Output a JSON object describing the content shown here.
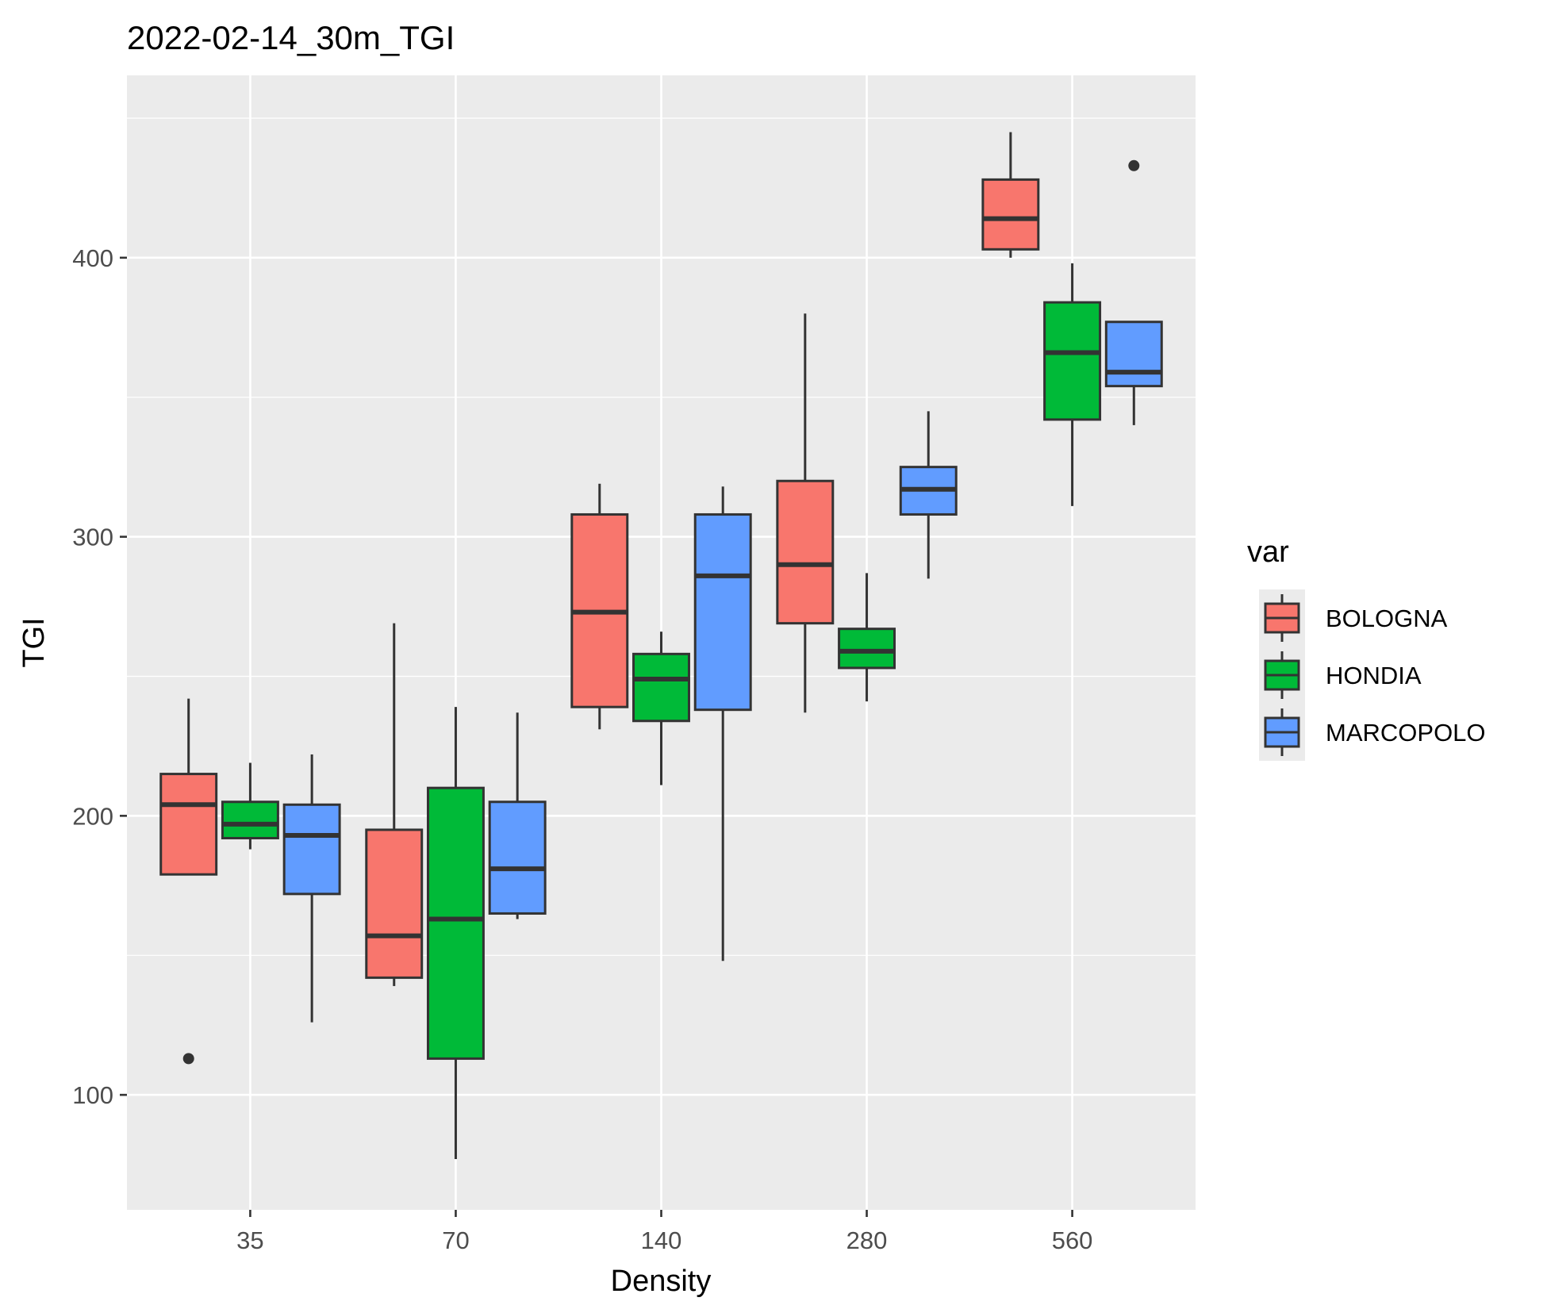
{
  "chart_data": {
    "type": "boxplot",
    "title": "2022-02-14_30m_TGI",
    "xlabel": "Density",
    "ylabel": "TGI",
    "categories": [
      "35",
      "70",
      "140",
      "280",
      "560"
    ],
    "y_ticks": [
      100,
      200,
      300,
      400
    ],
    "y_tick_labels": [
      "100",
      "200",
      "300",
      "400"
    ],
    "ylim": [
      60,
      460
    ],
    "grid": true,
    "legend": {
      "title": "var",
      "placement": "right"
    },
    "colors": {
      "BOLOGNA": "#F8766D",
      "HONDIA": "#00BA38",
      "MARCOPOLO": "#619CFF",
      "panel": "#EBEBEB",
      "grid": "#FFFFFF",
      "box_line": "#333333"
    },
    "series": [
      {
        "name": "BOLOGNA",
        "boxes": [
          {
            "min": 179,
            "q1": 179,
            "median": 204,
            "q3": 215,
            "max": 242,
            "outliers": [
              113
            ]
          },
          {
            "min": 139,
            "q1": 142,
            "median": 157,
            "q3": 195,
            "max": 269,
            "outliers": []
          },
          {
            "min": 231,
            "q1": 239,
            "median": 273,
            "q3": 308,
            "max": 319,
            "outliers": []
          },
          {
            "min": 237,
            "q1": 269,
            "median": 290,
            "q3": 320,
            "max": 380,
            "outliers": []
          },
          {
            "min": 400,
            "q1": 403,
            "median": 414,
            "q3": 428,
            "max": 445,
            "outliers": []
          }
        ]
      },
      {
        "name": "HONDIA",
        "boxes": [
          {
            "min": 188,
            "q1": 192,
            "median": 197,
            "q3": 205,
            "max": 219,
            "outliers": []
          },
          {
            "min": 77,
            "q1": 113,
            "median": 163,
            "q3": 210,
            "max": 239,
            "outliers": []
          },
          {
            "min": 211,
            "q1": 234,
            "median": 249,
            "q3": 258,
            "max": 266,
            "outliers": []
          },
          {
            "min": 241,
            "q1": 253,
            "median": 259,
            "q3": 267,
            "max": 287,
            "outliers": []
          },
          {
            "min": 311,
            "q1": 342,
            "median": 366,
            "q3": 384,
            "max": 398,
            "outliers": []
          }
        ]
      },
      {
        "name": "MARCOPOLO",
        "boxes": [
          {
            "min": 126,
            "q1": 172,
            "median": 193,
            "q3": 204,
            "max": 222,
            "outliers": []
          },
          {
            "min": 163,
            "q1": 165,
            "median": 181,
            "q3": 205,
            "max": 237,
            "outliers": []
          },
          {
            "min": 148,
            "q1": 238,
            "median": 286,
            "q3": 308,
            "max": 318,
            "outliers": []
          },
          {
            "min": 285,
            "q1": 308,
            "median": 317,
            "q3": 325,
            "max": 345,
            "outliers": []
          },
          {
            "min": 340,
            "q1": 354,
            "median": 359,
            "q3": 377,
            "max": 377,
            "outliers": [
              433
            ]
          }
        ]
      }
    ]
  }
}
